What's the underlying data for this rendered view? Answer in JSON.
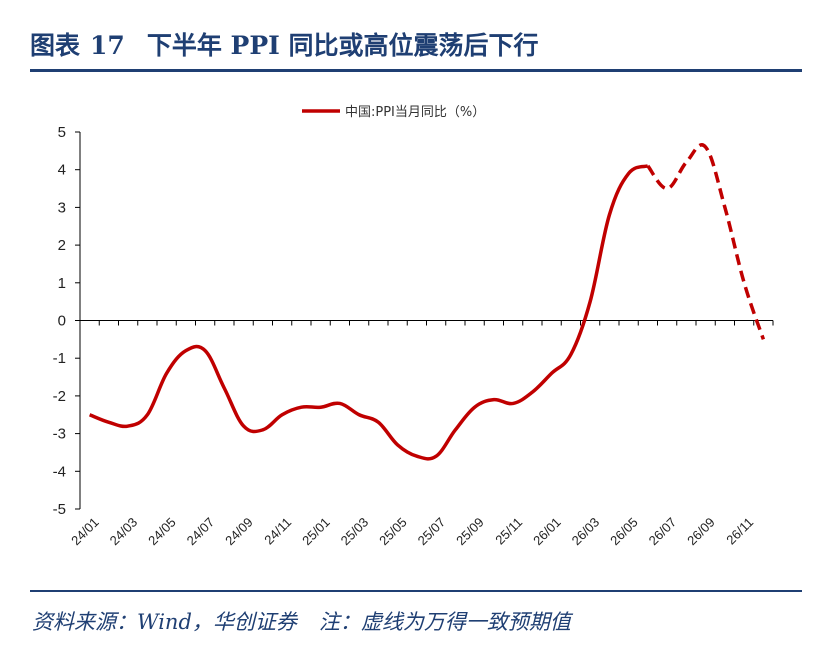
{
  "header": {
    "figure_label": "图表",
    "figure_number": "17",
    "title": "下半年 PPI 同比或高位震荡后下行"
  },
  "footer": {
    "source": "资料来源：Wind，华创证券",
    "note": "注：虚线为万得一致预期值"
  },
  "chart_data": {
    "type": "line",
    "title": "下半年 PPI 同比或高位震荡后下行",
    "ylim": [
      -5,
      5
    ],
    "yticks": [
      5,
      4,
      3,
      2,
      1,
      0,
      -1,
      -2,
      -3,
      -4,
      -5
    ],
    "grid": false,
    "legend_position": "top-center",
    "x_labels": [
      "24/01",
      "24/03",
      "24/05",
      "24/07",
      "24/09",
      "24/11",
      "25/01",
      "25/03",
      "25/05",
      "25/07",
      "25/09",
      "25/11",
      "26/01",
      "26/03",
      "26/05",
      "26/07",
      "26/09",
      "26/11"
    ],
    "x": [
      "24/01",
      "24/02",
      "24/03",
      "24/04",
      "24/05",
      "24/06",
      "24/07",
      "24/08",
      "24/09",
      "24/10",
      "24/11",
      "24/12",
      "25/01",
      "25/02",
      "25/03",
      "25/04",
      "25/05",
      "25/06",
      "25/07",
      "25/08",
      "25/09",
      "25/10",
      "25/11",
      "25/12",
      "26/01",
      "26/02",
      "26/03",
      "26/04",
      "26/05",
      "26/06",
      "26/07",
      "26/08",
      "26/09",
      "26/10",
      "26/11",
      "26/12"
    ],
    "series": [
      {
        "name": "中国:PPI当月同比（%）",
        "color": "#c00000",
        "values": [
          -2.5,
          -2.7,
          -2.8,
          -2.5,
          -1.4,
          -0.8,
          -0.8,
          -1.8,
          -2.8,
          -2.9,
          -2.5,
          -2.3,
          -2.3,
          -2.2,
          -2.5,
          -2.7,
          -3.3,
          -3.6,
          -3.6,
          -2.9,
          -2.3,
          -2.1,
          -2.2,
          -1.9,
          -1.4,
          -0.9,
          0.5,
          2.8,
          3.9,
          4.1,
          null,
          null,
          null,
          null,
          null,
          null
        ]
      },
      {
        "name": "万得一致预期值",
        "color": "#c00000",
        "dashed": true,
        "values": [
          null,
          null,
          null,
          null,
          null,
          null,
          null,
          null,
          null,
          null,
          null,
          null,
          null,
          null,
          null,
          null,
          null,
          null,
          null,
          null,
          null,
          null,
          null,
          null,
          null,
          null,
          null,
          null,
          null,
          4.1,
          3.5,
          4.2,
          4.6,
          3.0,
          1.0,
          -0.5
        ]
      }
    ]
  }
}
